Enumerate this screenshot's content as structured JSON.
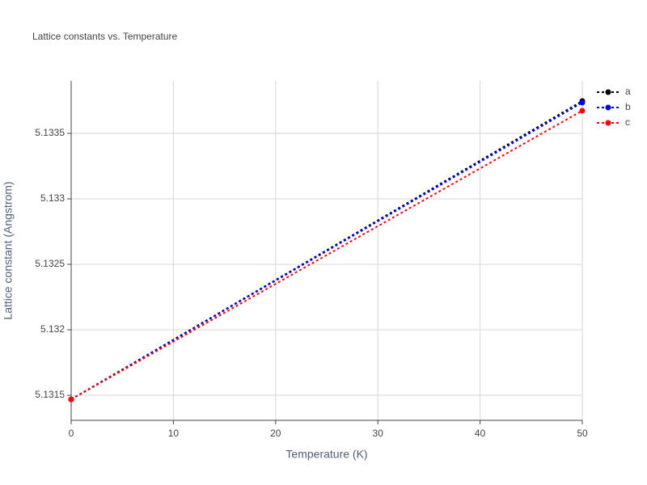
{
  "chart_data": {
    "type": "line",
    "title": "Lattice constants vs. Temperature",
    "xlabel": "Temperature (K)",
    "ylabel": "Lattice constant (Angstrom)",
    "x": [
      0,
      50
    ],
    "series": [
      {
        "name": "a",
        "color": "#000000",
        "values": [
          5.131469,
          5.133747
        ]
      },
      {
        "name": "b",
        "color": "#0000ff",
        "values": [
          5.131469,
          5.133735
        ]
      },
      {
        "name": "c",
        "color": "#ff0000",
        "values": [
          5.131469,
          5.133673
        ]
      }
    ],
    "xlim": [
      0,
      50
    ],
    "xticks": [
      0,
      10,
      20,
      30,
      40,
      50
    ],
    "ylim": [
      5.131309,
      5.133901
    ],
    "yticks": [
      5.1315,
      5.132,
      5.1325,
      5.133,
      5.1335
    ],
    "grid": true,
    "legend": "right"
  }
}
